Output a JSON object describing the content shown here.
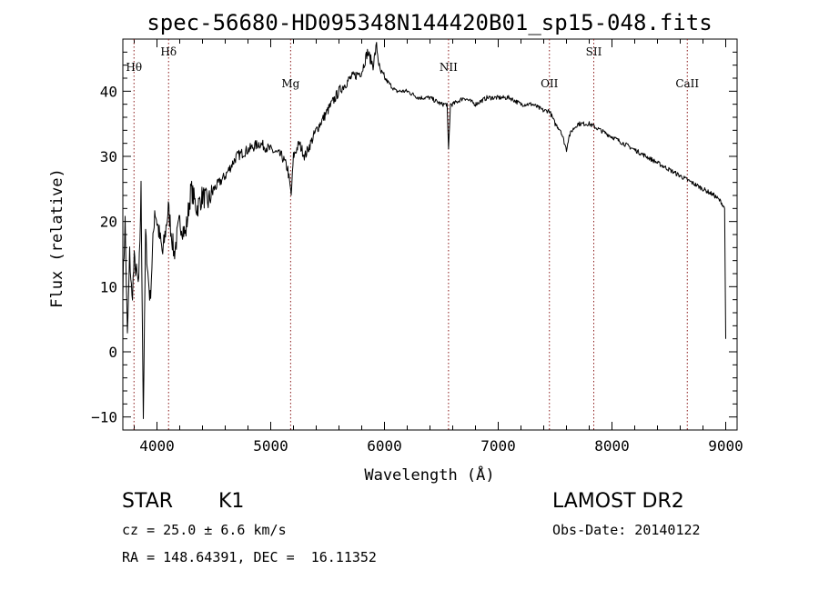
{
  "chart_data": {
    "type": "line",
    "title": "spec-56680-HD095348N144420B01_sp15-048.fits",
    "xlabel": "Wavelength (Å)",
    "ylabel": "Flux (relative)",
    "xlim": [
      3700,
      9100
    ],
    "ylim": [
      -12,
      48
    ],
    "xticks": [
      4000,
      5000,
      6000,
      7000,
      8000,
      9000
    ],
    "yticks": [
      -10,
      0,
      10,
      20,
      30,
      40
    ],
    "grid": false,
    "lines": [
      {
        "label": "Hθ",
        "x": 3798
      },
      {
        "label": "Hδ",
        "x": 4102
      },
      {
        "label": "Mg",
        "x": 5175
      },
      {
        "label": "NII",
        "x": 6563
      },
      {
        "label": "OII",
        "x": 7450
      },
      {
        "label": "SII",
        "x": 7840
      },
      {
        "label": "CaII",
        "x": 8662
      }
    ],
    "series": [
      {
        "x": [
          3700,
          3720,
          3740,
          3760,
          3780,
          3800,
          3820,
          3840,
          3860,
          3880,
          3900,
          3920,
          3940,
          3960,
          3980,
          4000,
          4050,
          4100,
          4150,
          4200,
          4250,
          4300,
          4350,
          4400,
          4450,
          4500,
          4600,
          4700,
          4800,
          4900,
          5000,
          5100,
          5150,
          5180,
          5200,
          5250,
          5300,
          5400,
          5500,
          5600,
          5700,
          5800,
          5850,
          5900,
          5930,
          5960,
          6000,
          6100,
          6200,
          6300,
          6400,
          6500,
          6550,
          6563,
          6580,
          6600,
          6700,
          6800,
          6900,
          7000,
          7100,
          7200,
          7300,
          7400,
          7450,
          7500,
          7550,
          7600,
          7620,
          7650,
          7700,
          7800,
          7900,
          8000,
          8100,
          8200,
          8300,
          8400,
          8500,
          8600,
          8700,
          8800,
          8900,
          8960,
          8990,
          9000
        ],
        "y": [
          10,
          20,
          2,
          15,
          8,
          14,
          12,
          10,
          25,
          -10,
          18,
          12,
          8,
          15,
          22,
          20,
          15,
          22,
          15,
          20,
          18,
          25,
          22,
          24,
          23,
          25,
          27,
          30,
          31,
          32,
          31,
          30,
          28,
          24,
          30,
          32,
          30,
          34,
          37,
          40,
          42,
          43,
          46,
          44,
          47,
          43,
          42,
          40,
          40,
          39,
          39,
          38,
          38,
          31,
          38,
          38,
          39,
          38,
          39,
          39,
          39,
          38,
          38,
          37,
          37,
          35,
          34,
          31,
          33,
          34,
          35,
          35,
          34,
          33,
          32,
          31,
          30,
          29,
          28,
          27,
          26,
          25,
          24,
          23,
          22,
          2
        ]
      }
    ]
  },
  "info": {
    "class_label": "STAR",
    "subclass": "K1",
    "survey": "LAMOST DR2",
    "cz_line": "cz = 25.0 ± 6.6 km/s",
    "obs_date": "Obs-Date: 20140122",
    "radec": "RA = 148.64391, DEC =  16.11352"
  }
}
